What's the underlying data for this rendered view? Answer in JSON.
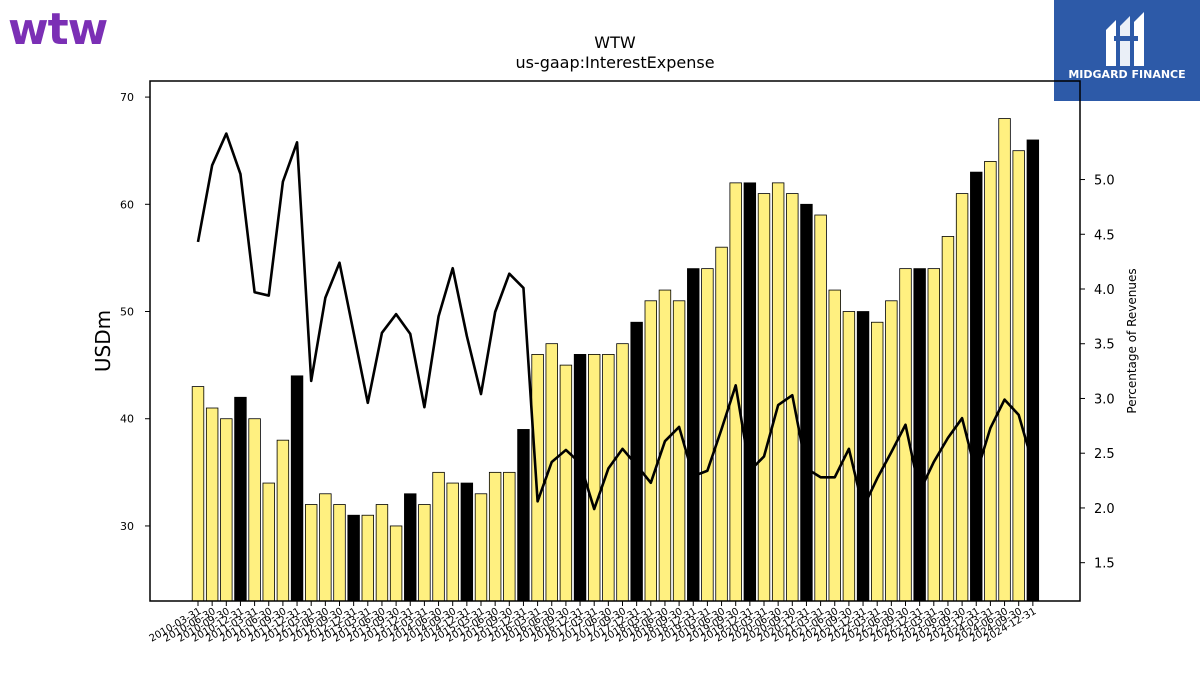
{
  "header": {
    "brand_logo_text": "wtw",
    "badge_logo_text": "MIDGARD FINANCE"
  },
  "colors": {
    "logo_purple": "#7b2fb5",
    "badge_blue": "#2d5aa8",
    "bar_yellow": "#fff080",
    "bar_black": "#000000",
    "line": "#000000"
  },
  "chart_data": {
    "type": "bar",
    "title": "WTW",
    "subtitle": "us-gaap:InterestExpense",
    "ylabel": "USDm",
    "y2label": "Percentage of Revenues",
    "ylim": [
      23,
      71.5
    ],
    "y2lim": [
      1.15,
      5.9
    ],
    "yticks": [
      30,
      40,
      50,
      60,
      70
    ],
    "y2ticks": [
      1.5,
      2.0,
      2.5,
      3.0,
      3.5,
      4.0,
      4.5,
      5.0
    ],
    "y2tick_labels": [
      "1.5",
      "2.0",
      "2.5",
      "3.0",
      "3.5",
      "4.0",
      "4.5",
      "5.0"
    ],
    "grid": false,
    "categories": [
      "2010-03-31",
      "2010-06-30",
      "2010-09-30",
      "2010-12-31",
      "2011-03-31",
      "2011-06-30",
      "2011-09-30",
      "2011-12-31",
      "2012-03-31",
      "2012-06-30",
      "2012-09-30",
      "2012-12-31",
      "2013-03-31",
      "2013-06-30",
      "2013-09-30",
      "2013-12-31",
      "2014-03-31",
      "2014-06-30",
      "2014-09-30",
      "2014-12-31",
      "2015-03-31",
      "2015-06-30",
      "2015-09-30",
      "2015-12-31",
      "2016-03-31",
      "2016-06-30",
      "2016-09-30",
      "2016-12-31",
      "2017-03-31",
      "2017-06-30",
      "2017-09-30",
      "2017-12-31",
      "2018-03-31",
      "2018-06-30",
      "2018-09-30",
      "2018-12-31",
      "2019-03-31",
      "2019-06-30",
      "2019-09-30",
      "2019-12-31",
      "2020-03-31",
      "2020-06-30",
      "2020-09-30",
      "2020-12-31",
      "2021-03-31",
      "2021-06-30",
      "2021-09-30",
      "2021-12-31",
      "2022-03-31",
      "2022-06-30",
      "2022-09-30",
      "2022-12-31",
      "2023-03-31",
      "2023-06-30",
      "2023-09-30",
      "2023-12-31",
      "2024-03-31",
      "2024-06-30",
      "2024-09-30",
      "2024-12-31"
    ],
    "series": [
      {
        "kind": "bar",
        "axis": "left",
        "values": [
          43,
          41,
          40,
          42,
          40,
          34,
          38,
          44,
          32,
          33,
          32,
          31,
          31,
          32,
          30,
          33,
          32,
          35,
          34,
          34,
          33,
          35,
          35,
          39,
          46,
          47,
          45,
          46,
          46,
          46,
          47,
          49,
          51,
          52,
          51,
          54,
          54,
          56,
          62,
          62,
          61,
          62,
          61,
          60,
          59,
          52,
          50,
          50,
          49,
          51,
          54,
          54,
          54,
          57,
          61,
          63,
          64,
          68,
          65,
          66
        ],
        "highlight": [
          false,
          false,
          false,
          true,
          false,
          false,
          false,
          true,
          false,
          false,
          false,
          true,
          false,
          false,
          false,
          true,
          false,
          false,
          false,
          true,
          false,
          false,
          false,
          true,
          false,
          false,
          false,
          true,
          false,
          false,
          false,
          true,
          false,
          false,
          false,
          true,
          false,
          false,
          false,
          true,
          false,
          false,
          false,
          true,
          false,
          false,
          false,
          true,
          false,
          false,
          false,
          true,
          false,
          false,
          false,
          true,
          false,
          false,
          false,
          true
        ]
      },
      {
        "kind": "line",
        "axis": "right",
        "values": [
          4.43,
          5.13,
          5.42,
          5.05,
          3.97,
          3.94,
          4.98,
          5.34,
          3.16,
          3.92,
          4.24,
          3.6,
          2.96,
          3.6,
          3.77,
          3.59,
          2.92,
          3.75,
          4.19,
          3.57,
          3.04,
          3.79,
          4.14,
          4.01,
          2.06,
          2.42,
          2.53,
          2.41,
          1.99,
          2.36,
          2.54,
          2.39,
          2.23,
          2.61,
          2.74,
          2.29,
          2.34,
          2.72,
          3.12,
          2.34,
          2.47,
          2.94,
          3.03,
          2.36,
          2.28,
          2.28,
          2.54,
          2.0,
          2.27,
          2.51,
          2.76,
          2.15,
          2.42,
          2.64,
          2.82,
          2.31,
          2.73,
          2.99,
          2.85,
          2.4
        ]
      }
    ]
  }
}
